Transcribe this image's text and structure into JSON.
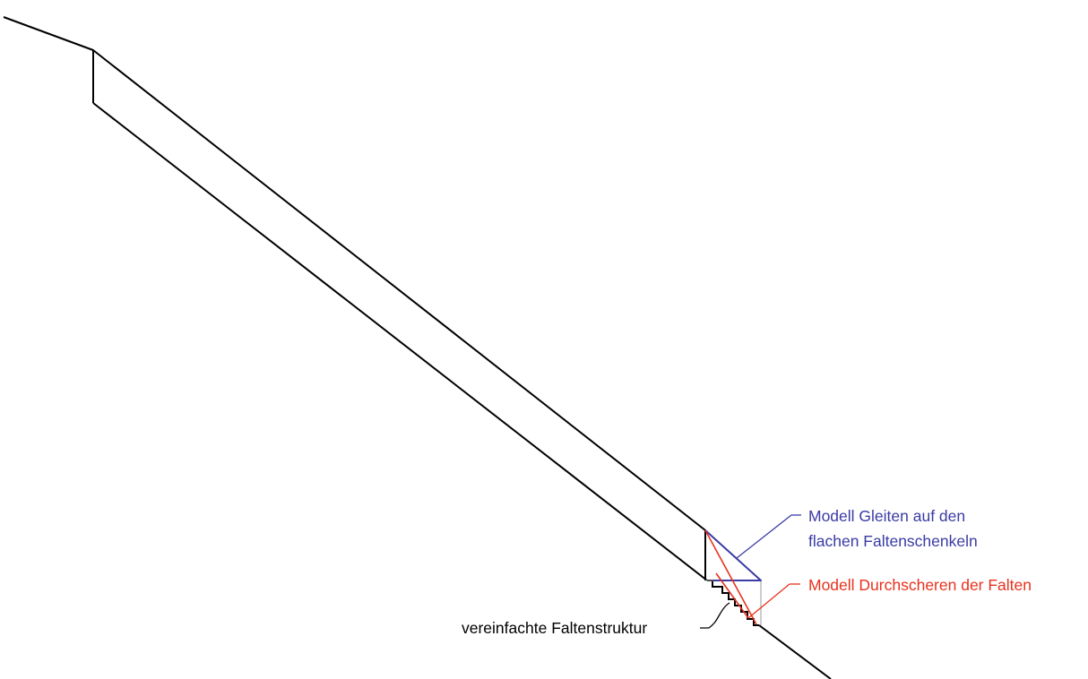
{
  "labels": {
    "blue_line1": "Modell Gleiten auf den",
    "blue_line2": "flachen Faltenschenkeln",
    "red": "Modell Durchscheren der Falten",
    "black": "vereinfachte Faltenstruktur"
  },
  "colors": {
    "outline": "#000000",
    "blue": "#3a3ba4",
    "red": "#e8321e",
    "guide": "#9a9a9a"
  }
}
